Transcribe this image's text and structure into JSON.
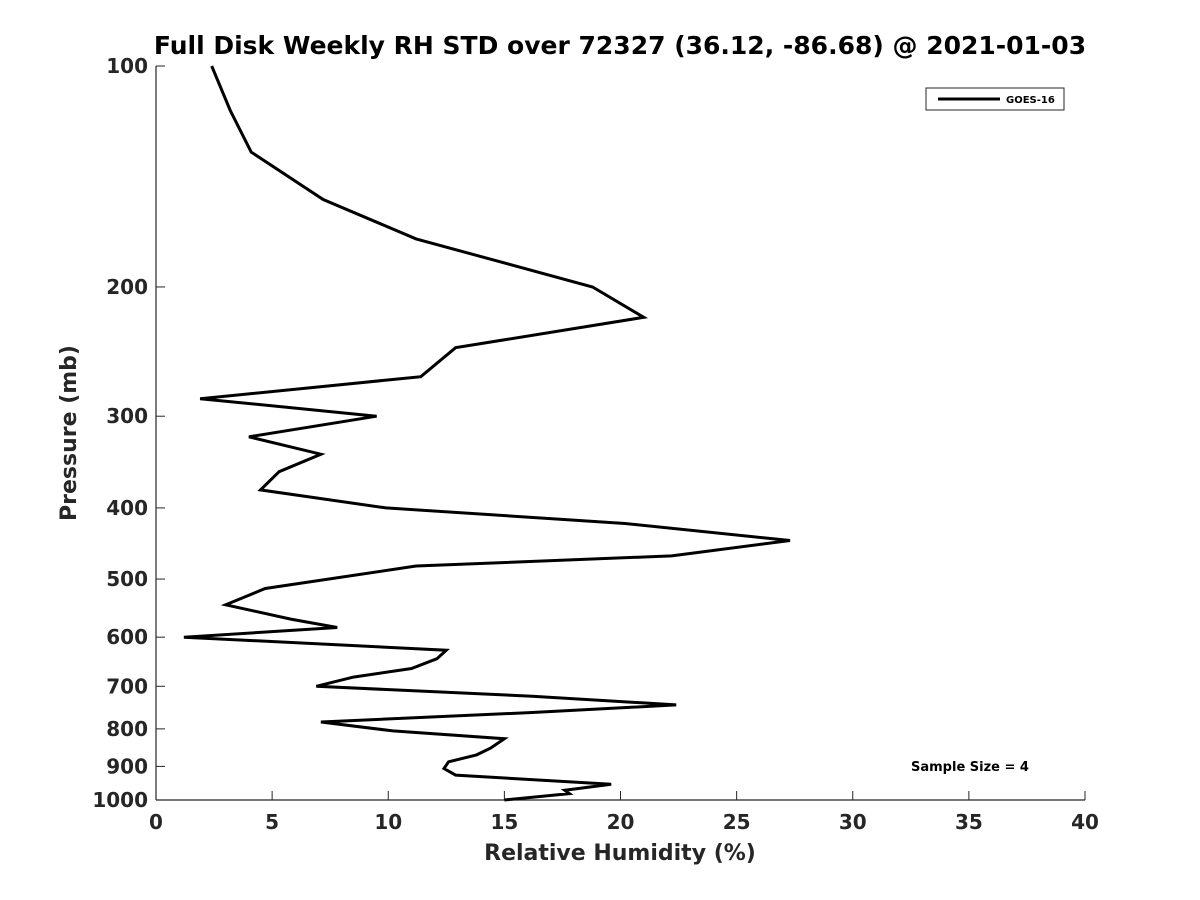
{
  "chart_data": {
    "type": "line",
    "title": "Full Disk Weekly RH STD over 72327 (36.12, -86.68) @ 2021-01-03",
    "xlabel": "Relative Humidity (%)",
    "ylabel": "Pressure (mb)",
    "xlim": [
      0,
      40
    ],
    "ylim": [
      100,
      1000
    ],
    "y_scale": "log",
    "y_reversed": true,
    "grid": false,
    "legend_position": "top-right",
    "x_ticks": [
      "0",
      "5",
      "10",
      "15",
      "20",
      "25",
      "30",
      "35",
      "40"
    ],
    "y_ticks": [
      "100",
      "200",
      "300",
      "400",
      "500",
      "600",
      "700",
      "800",
      "900",
      "1000"
    ],
    "series": [
      {
        "name": "GOES-16",
        "color": "#000000",
        "points": [
          [
            2.4,
            100
          ],
          [
            3.2,
            115
          ],
          [
            4.1,
            131
          ],
          [
            7.2,
            152
          ],
          [
            11.2,
            172
          ],
          [
            18.8,
            200
          ],
          [
            21.0,
            220
          ],
          [
            12.9,
            242
          ],
          [
            11.4,
            265
          ],
          [
            1.9,
            284
          ],
          [
            9.5,
            300
          ],
          [
            4.0,
            320
          ],
          [
            7.1,
            338
          ],
          [
            5.3,
            357
          ],
          [
            4.5,
            378
          ],
          [
            9.9,
            400
          ],
          [
            20.2,
            420
          ],
          [
            27.3,
            443
          ],
          [
            22.2,
            465
          ],
          [
            11.2,
            480
          ],
          [
            4.7,
            515
          ],
          [
            3.0,
            542
          ],
          [
            5.8,
            567
          ],
          [
            7.8,
            582
          ],
          [
            1.2,
            600
          ],
          [
            12.5,
            625
          ],
          [
            12.1,
            642
          ],
          [
            11.0,
            662
          ],
          [
            8.5,
            680
          ],
          [
            6.9,
            700
          ],
          [
            16.2,
            722
          ],
          [
            22.4,
            742
          ],
          [
            16.2,
            760
          ],
          [
            7.1,
            783
          ],
          [
            10.2,
            805
          ],
          [
            15.0,
            825
          ],
          [
            14.4,
            850
          ],
          [
            13.8,
            868
          ],
          [
            12.6,
            887
          ],
          [
            12.4,
            906
          ],
          [
            12.9,
            925
          ],
          [
            19.6,
            952
          ],
          [
            17.6,
            970
          ],
          [
            17.8,
            980
          ],
          [
            15.0,
            1000
          ]
        ]
      }
    ],
    "annotations": [
      "Sample Size = 4"
    ]
  }
}
